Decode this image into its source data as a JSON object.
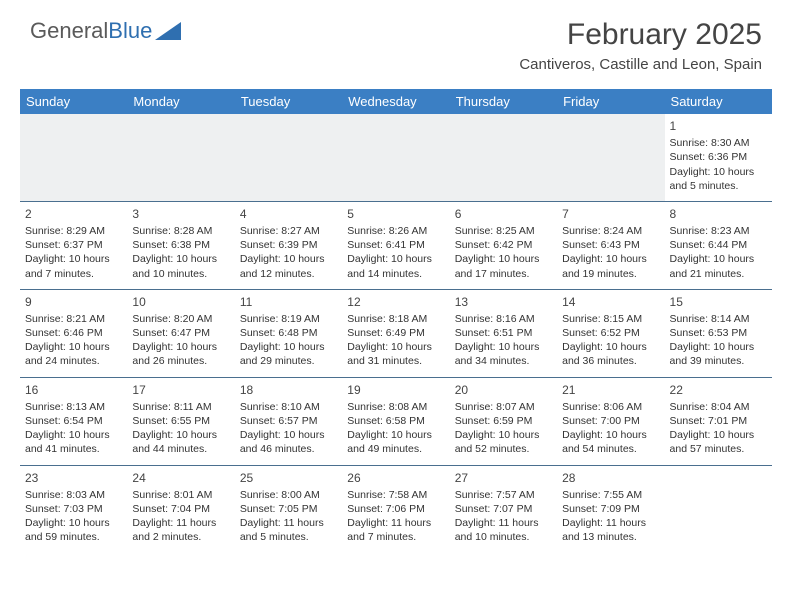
{
  "brand": {
    "name1": "General",
    "name2": "Blue",
    "accent": "#2f6fb0",
    "text_color": "#5a5a5a"
  },
  "title": "February 2025",
  "location": "Cantiveros, Castille and Leon, Spain",
  "header_bg": "#3b7fc4",
  "header_fg": "#ffffff",
  "divider_color": "#4a6f8f",
  "blank_row_bg": "#eef0f1",
  "weekdays": [
    "Sunday",
    "Monday",
    "Tuesday",
    "Wednesday",
    "Thursday",
    "Friday",
    "Saturday"
  ],
  "weeks": [
    [
      {
        "blank": true
      },
      {
        "blank": true
      },
      {
        "blank": true
      },
      {
        "blank": true
      },
      {
        "blank": true
      },
      {
        "blank": true
      },
      {
        "day": "1",
        "sunrise": "Sunrise: 8:30 AM",
        "sunset": "Sunset: 6:36 PM",
        "daylight": "Daylight: 10 hours and 5 minutes."
      }
    ],
    [
      {
        "day": "2",
        "sunrise": "Sunrise: 8:29 AM",
        "sunset": "Sunset: 6:37 PM",
        "daylight": "Daylight: 10 hours and 7 minutes."
      },
      {
        "day": "3",
        "sunrise": "Sunrise: 8:28 AM",
        "sunset": "Sunset: 6:38 PM",
        "daylight": "Daylight: 10 hours and 10 minutes."
      },
      {
        "day": "4",
        "sunrise": "Sunrise: 8:27 AM",
        "sunset": "Sunset: 6:39 PM",
        "daylight": "Daylight: 10 hours and 12 minutes."
      },
      {
        "day": "5",
        "sunrise": "Sunrise: 8:26 AM",
        "sunset": "Sunset: 6:41 PM",
        "daylight": "Daylight: 10 hours and 14 minutes."
      },
      {
        "day": "6",
        "sunrise": "Sunrise: 8:25 AM",
        "sunset": "Sunset: 6:42 PM",
        "daylight": "Daylight: 10 hours and 17 minutes."
      },
      {
        "day": "7",
        "sunrise": "Sunrise: 8:24 AM",
        "sunset": "Sunset: 6:43 PM",
        "daylight": "Daylight: 10 hours and 19 minutes."
      },
      {
        "day": "8",
        "sunrise": "Sunrise: 8:23 AM",
        "sunset": "Sunset: 6:44 PM",
        "daylight": "Daylight: 10 hours and 21 minutes."
      }
    ],
    [
      {
        "day": "9",
        "sunrise": "Sunrise: 8:21 AM",
        "sunset": "Sunset: 6:46 PM",
        "daylight": "Daylight: 10 hours and 24 minutes."
      },
      {
        "day": "10",
        "sunrise": "Sunrise: 8:20 AM",
        "sunset": "Sunset: 6:47 PM",
        "daylight": "Daylight: 10 hours and 26 minutes."
      },
      {
        "day": "11",
        "sunrise": "Sunrise: 8:19 AM",
        "sunset": "Sunset: 6:48 PM",
        "daylight": "Daylight: 10 hours and 29 minutes."
      },
      {
        "day": "12",
        "sunrise": "Sunrise: 8:18 AM",
        "sunset": "Sunset: 6:49 PM",
        "daylight": "Daylight: 10 hours and 31 minutes."
      },
      {
        "day": "13",
        "sunrise": "Sunrise: 8:16 AM",
        "sunset": "Sunset: 6:51 PM",
        "daylight": "Daylight: 10 hours and 34 minutes."
      },
      {
        "day": "14",
        "sunrise": "Sunrise: 8:15 AM",
        "sunset": "Sunset: 6:52 PM",
        "daylight": "Daylight: 10 hours and 36 minutes."
      },
      {
        "day": "15",
        "sunrise": "Sunrise: 8:14 AM",
        "sunset": "Sunset: 6:53 PM",
        "daylight": "Daylight: 10 hours and 39 minutes."
      }
    ],
    [
      {
        "day": "16",
        "sunrise": "Sunrise: 8:13 AM",
        "sunset": "Sunset: 6:54 PM",
        "daylight": "Daylight: 10 hours and 41 minutes."
      },
      {
        "day": "17",
        "sunrise": "Sunrise: 8:11 AM",
        "sunset": "Sunset: 6:55 PM",
        "daylight": "Daylight: 10 hours and 44 minutes."
      },
      {
        "day": "18",
        "sunrise": "Sunrise: 8:10 AM",
        "sunset": "Sunset: 6:57 PM",
        "daylight": "Daylight: 10 hours and 46 minutes."
      },
      {
        "day": "19",
        "sunrise": "Sunrise: 8:08 AM",
        "sunset": "Sunset: 6:58 PM",
        "daylight": "Daylight: 10 hours and 49 minutes."
      },
      {
        "day": "20",
        "sunrise": "Sunrise: 8:07 AM",
        "sunset": "Sunset: 6:59 PM",
        "daylight": "Daylight: 10 hours and 52 minutes."
      },
      {
        "day": "21",
        "sunrise": "Sunrise: 8:06 AM",
        "sunset": "Sunset: 7:00 PM",
        "daylight": "Daylight: 10 hours and 54 minutes."
      },
      {
        "day": "22",
        "sunrise": "Sunrise: 8:04 AM",
        "sunset": "Sunset: 7:01 PM",
        "daylight": "Daylight: 10 hours and 57 minutes."
      }
    ],
    [
      {
        "day": "23",
        "sunrise": "Sunrise: 8:03 AM",
        "sunset": "Sunset: 7:03 PM",
        "daylight": "Daylight: 10 hours and 59 minutes."
      },
      {
        "day": "24",
        "sunrise": "Sunrise: 8:01 AM",
        "sunset": "Sunset: 7:04 PM",
        "daylight": "Daylight: 11 hours and 2 minutes."
      },
      {
        "day": "25",
        "sunrise": "Sunrise: 8:00 AM",
        "sunset": "Sunset: 7:05 PM",
        "daylight": "Daylight: 11 hours and 5 minutes."
      },
      {
        "day": "26",
        "sunrise": "Sunrise: 7:58 AM",
        "sunset": "Sunset: 7:06 PM",
        "daylight": "Daylight: 11 hours and 7 minutes."
      },
      {
        "day": "27",
        "sunrise": "Sunrise: 7:57 AM",
        "sunset": "Sunset: 7:07 PM",
        "daylight": "Daylight: 11 hours and 10 minutes."
      },
      {
        "day": "28",
        "sunrise": "Sunrise: 7:55 AM",
        "sunset": "Sunset: 7:09 PM",
        "daylight": "Daylight: 11 hours and 13 minutes."
      },
      {
        "blank": true
      }
    ]
  ]
}
